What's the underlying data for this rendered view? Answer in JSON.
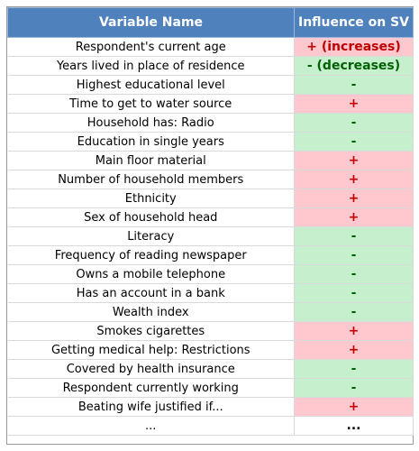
{
  "table": {
    "headers": [
      "Variable Name",
      "Influence on SV"
    ],
    "rows": [
      {
        "name": "Respondent's current age",
        "influence": "+ (increases)",
        "effect": "inc"
      },
      {
        "name": "Years lived in place of residence",
        "influence": "- (decreases)",
        "effect": "dec"
      },
      {
        "name": "Highest educational level",
        "influence": "-",
        "effect": "dec"
      },
      {
        "name": "Time to get to water source",
        "influence": "+",
        "effect": "inc"
      },
      {
        "name": "Household has: Radio",
        "influence": "-",
        "effect": "dec"
      },
      {
        "name": "Education in single years",
        "influence": "-",
        "effect": "dec"
      },
      {
        "name": "Main floor material",
        "influence": "+",
        "effect": "inc"
      },
      {
        "name": "Number of household members",
        "influence": "+",
        "effect": "inc"
      },
      {
        "name": "Ethnicity",
        "influence": "+",
        "effect": "inc"
      },
      {
        "name": "Sex of household head",
        "influence": "+",
        "effect": "inc"
      },
      {
        "name": "Literacy",
        "influence": "-",
        "effect": "dec"
      },
      {
        "name": "Frequency of reading newspaper",
        "influence": "-",
        "effect": "dec"
      },
      {
        "name": "Owns a mobile telephone",
        "influence": "-",
        "effect": "dec"
      },
      {
        "name": "Has an account in a bank",
        "influence": "-",
        "effect": "dec"
      },
      {
        "name": "Wealth index",
        "influence": "-",
        "effect": "dec"
      },
      {
        "name": "Smokes cigarettes",
        "influence": "+",
        "effect": "inc"
      },
      {
        "name": "Getting medical help: Restrictions",
        "influence": "+",
        "effect": "inc"
      },
      {
        "name": "Covered by health insurance",
        "influence": "-",
        "effect": "dec"
      },
      {
        "name": "Respondent currently working",
        "influence": "-",
        "effect": "dec"
      },
      {
        "name": "Beating wife justified if...",
        "influence": "+",
        "effect": "inc"
      },
      {
        "name": "...",
        "influence": "...",
        "effect": "none"
      }
    ]
  },
  "colors": {
    "header_bg": "#4f81bd",
    "header_text": "#ffffff",
    "increase_bg": "#ffc7ce",
    "increase_text": "#c00000",
    "decrease_bg": "#c6efce",
    "decrease_text": "#006100"
  }
}
